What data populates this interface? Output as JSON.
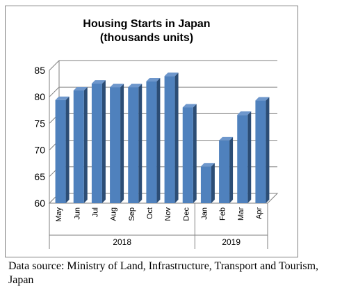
{
  "chart_data": {
    "type": "bar",
    "title_lines": [
      "Housing Starts in Japan",
      "(thousands units)"
    ],
    "categories": [
      "May",
      "Jun",
      "Jul",
      "Aug",
      "Sep",
      "Oct",
      "Nov",
      "Dec",
      "Jan",
      "Feb",
      "Mar",
      "Apr"
    ],
    "values": [
      79.4,
      81.2,
      82.5,
      81.8,
      81.8,
      82.9,
      83.9,
      78.0,
      66.9,
      71.8,
      76.6,
      79.3
    ],
    "groups": [
      {
        "label": "2018",
        "count": 8
      },
      {
        "label": "2019",
        "count": 4
      }
    ],
    "ylim": [
      60,
      85
    ],
    "yticks": [
      60,
      65,
      70,
      75,
      80,
      85
    ],
    "grid": true,
    "bar_color": "#4f81bd",
    "bar_side_color": "#2c4d75",
    "bar_top_color": "#6e97cc"
  },
  "source_note": "Data source: Ministry of Land, Infrastructure, Transport and Tourism, Japan"
}
